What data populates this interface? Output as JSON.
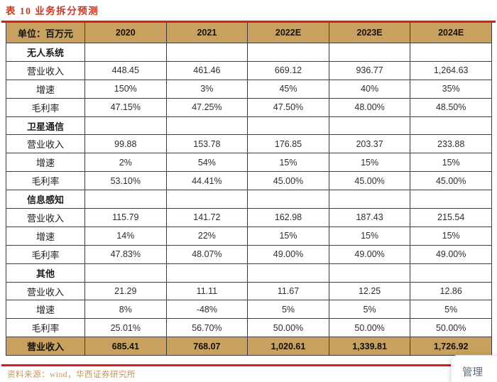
{
  "title": "表 10 业务拆分预测",
  "table": {
    "unit_header": "单位：百万元",
    "columns": [
      "2020",
      "2021",
      "2022E",
      "2023E",
      "2024E"
    ],
    "sections": [
      {
        "name": "无人系统",
        "rows": [
          {
            "label": "营业收入",
            "values": [
              "448.45",
              "461.46",
              "669.12",
              "936.77",
              "1,264.63"
            ]
          },
          {
            "label": "增速",
            "values": [
              "150%",
              "3%",
              "45%",
              "40%",
              "35%"
            ]
          },
          {
            "label": "毛利率",
            "values": [
              "47.15%",
              "47.25%",
              "47.50%",
              "48.00%",
              "48.50%"
            ]
          }
        ]
      },
      {
        "name": "卫星通信",
        "rows": [
          {
            "label": "营业收入",
            "values": [
              "99.88",
              "153.78",
              "176.85",
              "203.37",
              "233.88"
            ]
          },
          {
            "label": "增速",
            "values": [
              "2%",
              "54%",
              "15%",
              "15%",
              "15%"
            ]
          },
          {
            "label": "毛利率",
            "values": [
              "53.10%",
              "44.41%",
              "45.00%",
              "45.00%",
              "45.00%"
            ]
          }
        ]
      },
      {
        "name": "信息感知",
        "rows": [
          {
            "label": "营业收入",
            "values": [
              "115.79",
              "141.72",
              "162.98",
              "187.43",
              "215.54"
            ]
          },
          {
            "label": "增速",
            "values": [
              "14%",
              "22%",
              "15%",
              "15%",
              "15%"
            ]
          },
          {
            "label": "毛利率",
            "values": [
              "47.83%",
              "48.07%",
              "49.00%",
              "49.00%",
              "49.00%"
            ]
          }
        ]
      },
      {
        "name": "其他",
        "rows": [
          {
            "label": "营业收入",
            "values": [
              "21.29",
              "11.11",
              "11.67",
              "12.25",
              "12.86"
            ]
          },
          {
            "label": "增速",
            "values": [
              "8%",
              "-48%",
              "5%",
              "5%",
              "5%"
            ]
          },
          {
            "label": "毛利率",
            "values": [
              "25.01%",
              "56.70%",
              "50.00%",
              "50.00%",
              "50.00%"
            ]
          }
        ]
      }
    ],
    "total_row": {
      "label": "营业收入",
      "values": [
        "685.41",
        "768.07",
        "1,020.61",
        "1,339.81",
        "1,726.92"
      ]
    }
  },
  "footer": {
    "source": "资料来源：wind，华西证券研究所"
  },
  "overlay": {
    "label": "管理"
  },
  "colors": {
    "title_red": "#c23a28",
    "rule_red": "#d02113",
    "header_tan": "#c8a05f",
    "total_tan": "#c8a05f",
    "grid_line": "#3c3c3c",
    "source_tan": "#bf9659",
    "overlay_text": "#5d6b7d"
  }
}
